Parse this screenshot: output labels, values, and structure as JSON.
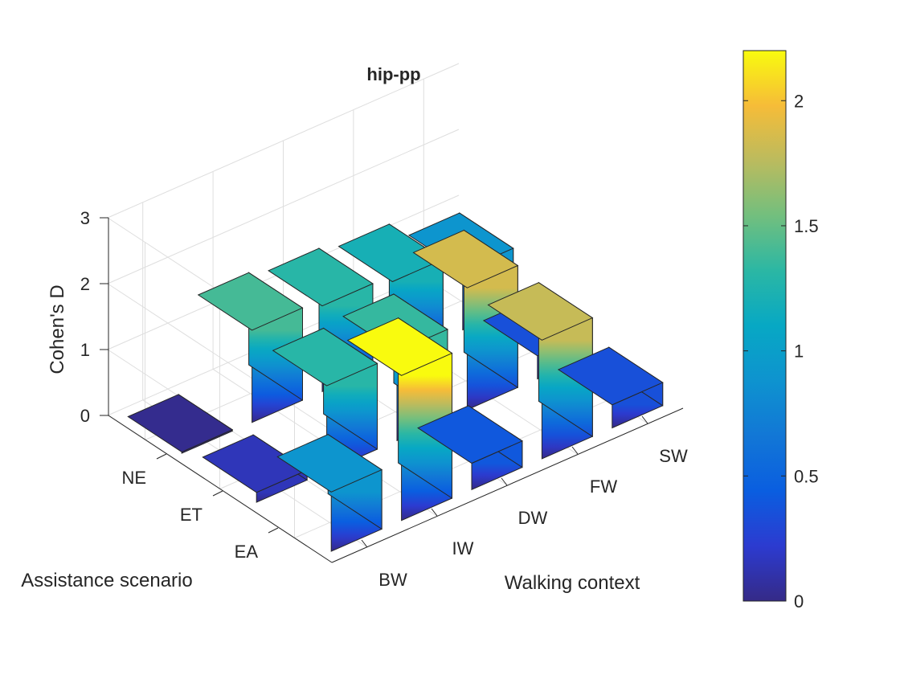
{
  "chart_data": {
    "type": "bar3d",
    "title": "hip-pp",
    "xlabel": "Walking context",
    "ylabel": "Assistance scenario",
    "zlabel": "Cohen's D",
    "x_categories": [
      "BW",
      "IW",
      "DW",
      "FW",
      "SW"
    ],
    "y_categories": [
      "NE",
      "ET",
      "EA"
    ],
    "zlim": [
      0,
      3
    ],
    "z_ticks": [
      "0",
      "1",
      "2",
      "3"
    ],
    "grid": true,
    "series": [
      {
        "name": "NE",
        "values": [
          0.02,
          1.4,
          1.3,
          1.2,
          0.9
        ]
      },
      {
        "name": "ET",
        "values": [
          0.15,
          1.3,
          1.35,
          1.85,
          0.35
        ]
      },
      {
        "name": "EA",
        "values": [
          0.9,
          2.2,
          0.4,
          1.8,
          0.35
        ]
      }
    ],
    "colorbar": {
      "colormap": "parula",
      "limits": [
        0,
        2.2
      ],
      "ticks": [
        "0",
        "0.5",
        "1",
        "1.5",
        "2"
      ],
      "tick_values": [
        0,
        0.5,
        1,
        1.5,
        2
      ]
    }
  }
}
